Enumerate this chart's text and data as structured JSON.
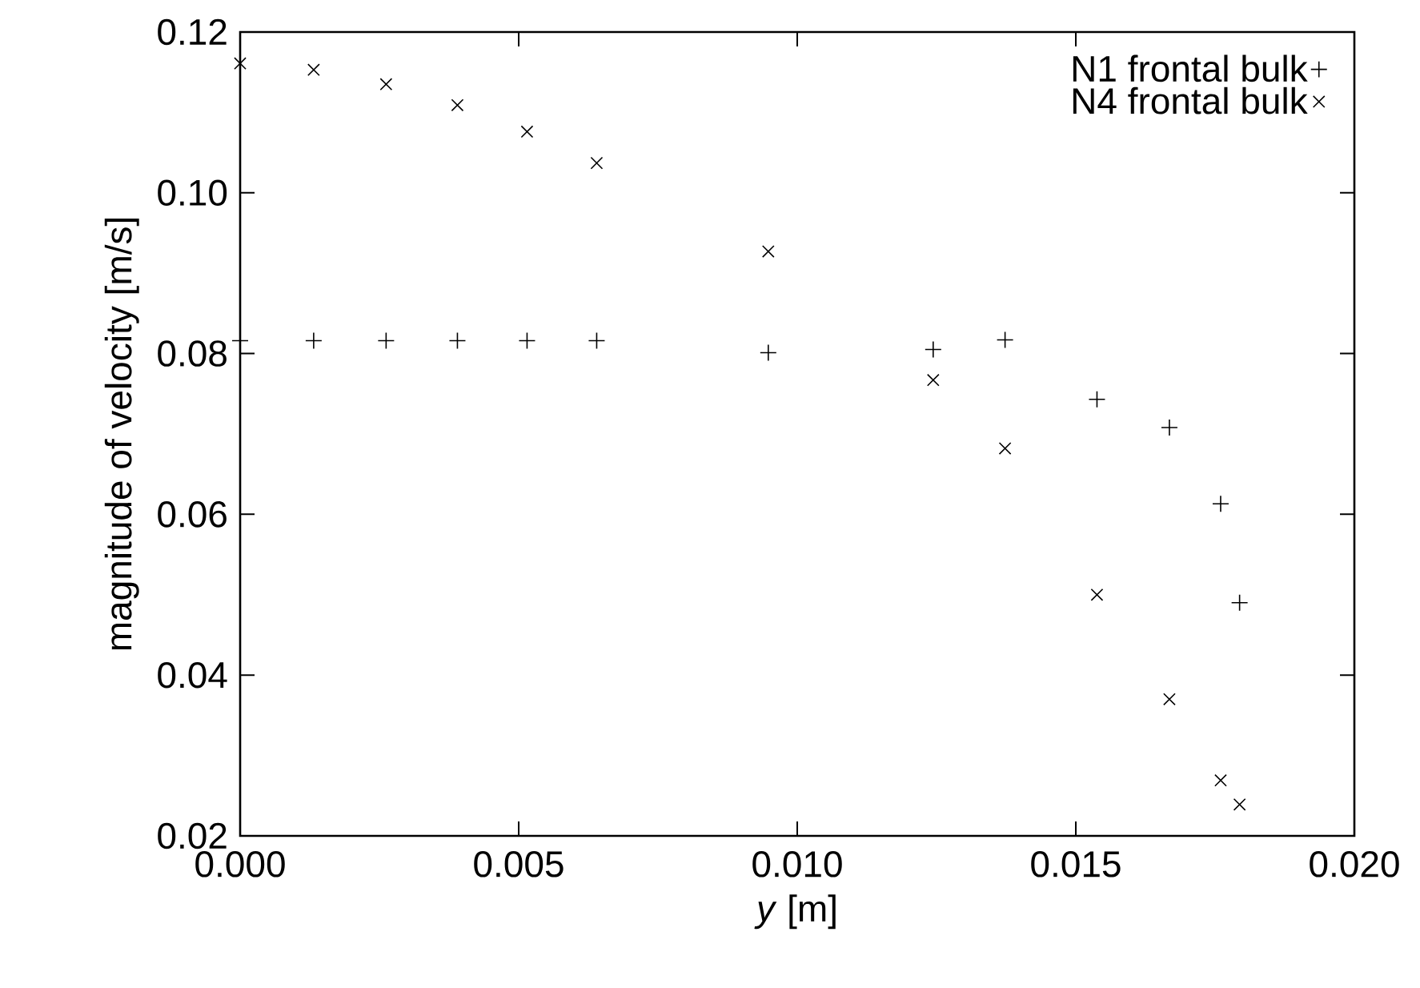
{
  "chart_data": {
    "type": "scatter",
    "xlabel": "*y* [m]",
    "ylabel": "magnitude of velocity [m/s]",
    "xlim": [
      0,
      0.02
    ],
    "ylim": [
      0.02,
      0.12
    ],
    "xticks": [
      {
        "value": 0,
        "label": "0.000"
      },
      {
        "value": 0.005,
        "label": "0.005"
      },
      {
        "value": 0.01,
        "label": "0.010"
      },
      {
        "value": 0.015,
        "label": "0.015"
      },
      {
        "value": 0.02,
        "label": "0.020"
      }
    ],
    "yticks": [
      {
        "value": 0.02,
        "label": "0.02"
      },
      {
        "value": 0.04,
        "label": "0.04"
      },
      {
        "value": 0.06,
        "label": "0.06"
      },
      {
        "value": 0.08,
        "label": "0.08"
      },
      {
        "value": 0.1,
        "label": "0.10"
      },
      {
        "value": 0.12,
        "label": "0.12"
      }
    ],
    "legend": "top right",
    "grid": false,
    "series": [
      {
        "name": "N1 frontal bulk",
        "color": "#000000",
        "marker": "plus",
        "x": [
          0,
          0.00132,
          0.00262,
          0.0039,
          0.00515,
          0.0064,
          0.00948,
          0.01244,
          0.01373,
          0.01538,
          0.01668,
          0.0176,
          0.01794
        ],
        "values": [
          0.0816,
          0.0816,
          0.0816,
          0.0816,
          0.0816,
          0.0816,
          0.0801,
          0.0805,
          0.0817,
          0.0743,
          0.0708,
          0.0613,
          0.049
        ]
      },
      {
        "name": "N4 frontal bulk",
        "color": "#000000",
        "marker": "cross",
        "x": [
          0,
          0.00132,
          0.00262,
          0.0039,
          0.00515,
          0.0064,
          0.00948,
          0.01244,
          0.01373,
          0.01538,
          0.01668,
          0.0176,
          0.01794
        ],
        "values": [
          0.1161,
          0.1153,
          0.1135,
          0.1109,
          0.1076,
          0.1037,
          0.0927,
          0.0767,
          0.0682,
          0.05,
          0.037,
          0.0269,
          0.0239
        ]
      }
    ]
  }
}
